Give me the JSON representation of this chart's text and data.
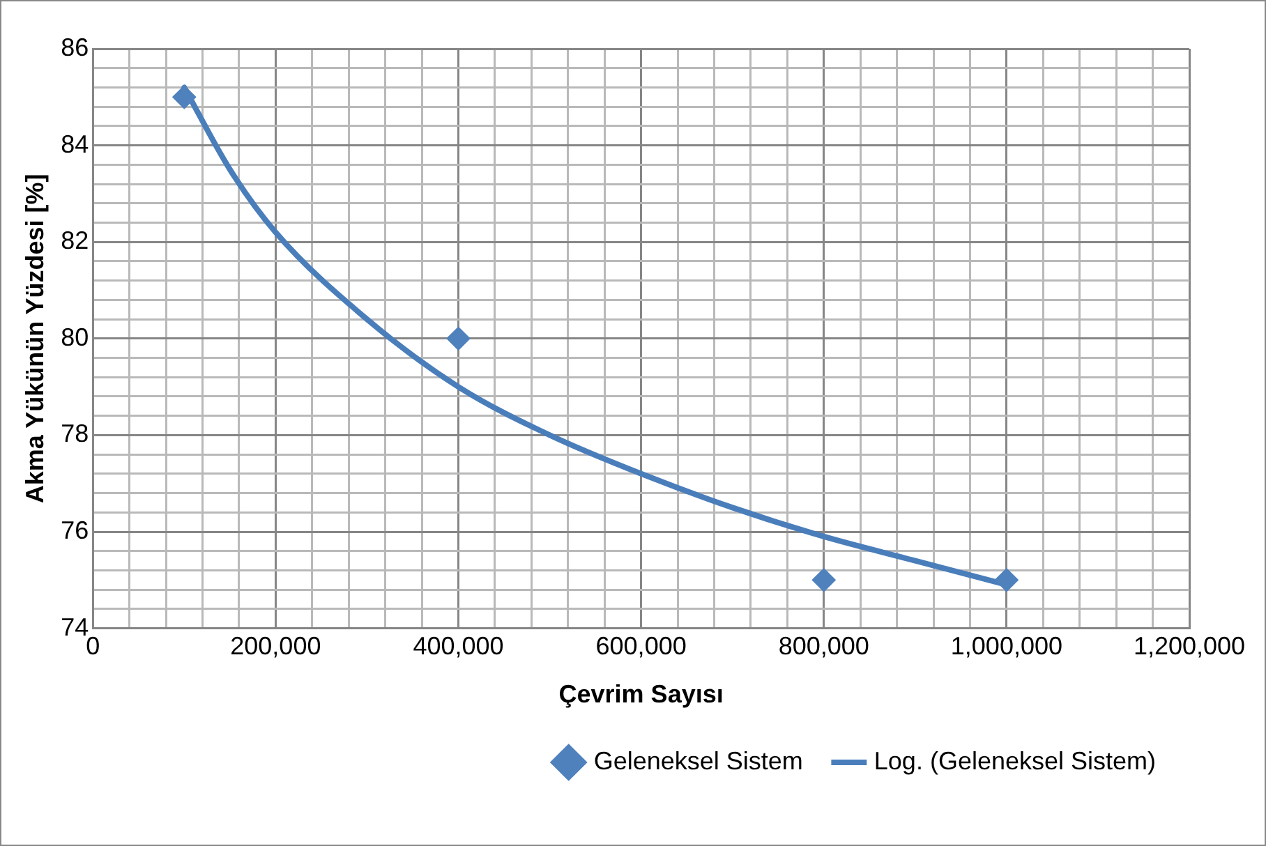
{
  "chart_data": {
    "type": "scatter",
    "xlabel": "Çevrim Sayısı",
    "ylabel": "Akma Yükünün Yüzdesi [%]",
    "series": [
      {
        "name": "Geleneksel Sistem",
        "type": "scatter",
        "color": "#4f81bd",
        "marker": "diamond",
        "x": [
          100000,
          400000,
          800000,
          1000000
        ],
        "values": [
          85,
          80,
          75,
          75
        ]
      },
      {
        "name": "Log. (Geleneksel Sistem)",
        "type": "line",
        "color": "#4a7ebb",
        "marker": "none",
        "line_style": "solid",
        "x": [
          100000,
          150000,
          200000,
          300000,
          400000,
          500000,
          600000,
          700000,
          800000,
          900000,
          1000000
        ],
        "values": [
          85.2,
          83.5,
          82.2,
          80.4,
          79.0,
          78.0,
          77.2,
          76.5,
          75.9,
          75.4,
          74.9
        ]
      }
    ],
    "xlim": [
      0,
      1200000
    ],
    "xticks": [
      0,
      {
        "value": 40000,
        "label": null
      },
      {
        "value": 80000,
        "label": null
      },
      {
        "value": 120000,
        "label": null
      },
      {
        "value": 160000,
        "label": null
      },
      {
        "value": 200000,
        "label": "200,000"
      },
      {
        "value": 240000,
        "label": null
      },
      {
        "value": 280000,
        "label": null
      },
      {
        "value": 320000,
        "label": null
      },
      {
        "value": 360000,
        "label": null
      },
      {
        "value": 400000,
        "label": "400,000"
      },
      {
        "value": 440000,
        "label": null
      },
      {
        "value": 480000,
        "label": null
      },
      {
        "value": 520000,
        "label": null
      },
      {
        "value": 560000,
        "label": null
      },
      {
        "value": 600000,
        "label": "600,000"
      },
      {
        "value": 640000,
        "label": null
      },
      {
        "value": 680000,
        "label": null
      },
      {
        "value": 720000,
        "label": null
      },
      {
        "value": 760000,
        "label": null
      },
      {
        "value": 800000,
        "label": "800,000"
      },
      {
        "value": 840000,
        "label": null
      },
      {
        "value": 880000,
        "label": null
      },
      {
        "value": 920000,
        "label": null
      },
      {
        "value": 960000,
        "label": null
      },
      {
        "value": 1000000,
        "label": "1,000,000"
      },
      {
        "value": 1040000,
        "label": null
      },
      {
        "value": 1080000,
        "label": null
      },
      {
        "value": 1120000,
        "label": null
      },
      {
        "value": 1160000,
        "label": null
      },
      {
        "value": 1200000,
        "label": "1,200,000"
      }
    ],
    "ylim": [
      74,
      86
    ],
    "yticks": [
      74,
      {
        "value": 74.4,
        "label": null
      },
      {
        "value": 74.8,
        "label": null
      },
      {
        "value": 75.2,
        "label": null
      },
      {
        "value": 75.6,
        "label": null
      },
      76,
      {
        "value": 76.4,
        "label": null
      },
      {
        "value": 76.8,
        "label": null
      },
      {
        "value": 77.2,
        "label": null
      },
      {
        "value": 77.6,
        "label": null
      },
      78,
      {
        "value": 78.4,
        "label": null
      },
      {
        "value": 78.8,
        "label": null
      },
      {
        "value": 79.2,
        "label": null
      },
      {
        "value": 79.6,
        "label": null
      },
      80,
      {
        "value": 80.4,
        "label": null
      },
      {
        "value": 80.8,
        "label": null
      },
      {
        "value": 81.2,
        "label": null
      },
      {
        "value": 81.6,
        "label": null
      },
      82,
      {
        "value": 82.4,
        "label": null
      },
      {
        "value": 82.8,
        "label": null
      },
      {
        "value": 83.2,
        "label": null
      },
      {
        "value": 83.6,
        "label": null
      },
      84,
      {
        "value": 84.4,
        "label": null
      },
      {
        "value": 84.8,
        "label": null
      },
      {
        "value": 85.2,
        "label": null
      },
      {
        "value": 85.6,
        "label": null
      },
      86
    ],
    "grid": true,
    "legend": "bottom right"
  }
}
